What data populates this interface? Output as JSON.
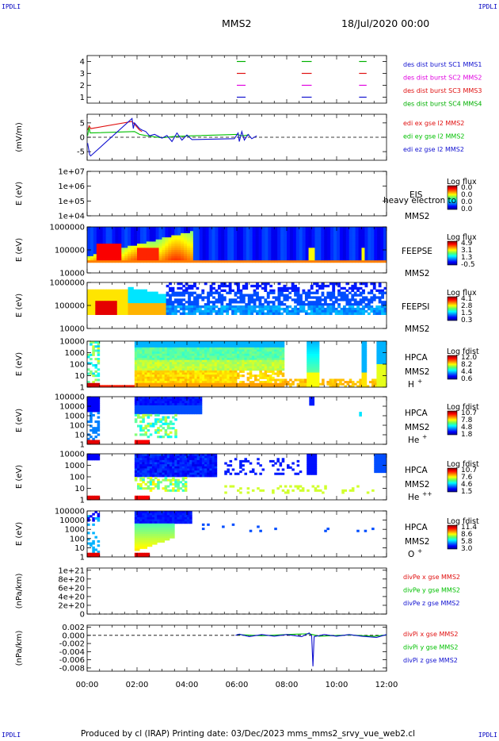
{
  "header": {
    "corner_tl": "IPDLI",
    "corner_tr": "IPDLI",
    "corner_bl": "IPDLI",
    "corner_br": "IPDLI",
    "title": "MMS2",
    "date": "18/Jul/2020 00:00"
  },
  "footer": {
    "text": "Produced by cl (IRAP)   Printing date: 03/Dec/2023   mms_mms2_srvy_vue_web2.cl"
  },
  "time_axis": {
    "range_hours": [
      0,
      12
    ],
    "ticks": [
      "00:00",
      "02:00",
      "04:00",
      "06:00",
      "08:00",
      "10:00",
      "12:00"
    ]
  },
  "colors": {
    "mms1": "#00b000",
    "mms2": "#e01010",
    "mms3": "#e000e0",
    "mms4": "#1010d0",
    "x_component": "#e01010",
    "y_component": "#00c000",
    "z_component": "#1010d0"
  },
  "chart_data": [
    {
      "type": "scatter",
      "panel": "burst-availability",
      "yticks": [
        "1",
        "2",
        "3",
        "4"
      ],
      "ylim": [
        0.5,
        4.5
      ],
      "legend": [
        {
          "text": "des dist burst SC1 MMS1",
          "color": "#1010d0"
        },
        {
          "text": "des dist burst SC2 MMS2",
          "color": "#e000e0"
        },
        {
          "text": "des dist burst SC3 MMS3",
          "color": "#e01010"
        },
        {
          "text": "des dist burst SC4 MMS4",
          "color": "#00b000"
        }
      ],
      "segments": [
        {
          "level": 4,
          "color": "#00b000",
          "start": 6.0,
          "end": 6.35
        },
        {
          "level": 4,
          "color": "#00b000",
          "start": 8.6,
          "end": 9.0
        },
        {
          "level": 4,
          "color": "#00b000",
          "start": 10.9,
          "end": 11.2
        },
        {
          "level": 3,
          "color": "#e01010",
          "start": 6.0,
          "end": 6.35
        },
        {
          "level": 3,
          "color": "#e01010",
          "start": 8.6,
          "end": 9.0
        },
        {
          "level": 3,
          "color": "#e01010",
          "start": 10.9,
          "end": 11.2
        },
        {
          "level": 2,
          "color": "#e000e0",
          "start": 6.0,
          "end": 6.35
        },
        {
          "level": 2,
          "color": "#e000e0",
          "start": 8.6,
          "end": 9.0
        },
        {
          "level": 2,
          "color": "#e000e0",
          "start": 10.9,
          "end": 11.2
        },
        {
          "level": 1,
          "color": "#1010d0",
          "start": 6.0,
          "end": 6.35
        },
        {
          "level": 1,
          "color": "#1010d0",
          "start": 8.6,
          "end": 9.0
        },
        {
          "level": 1,
          "color": "#1010d0",
          "start": 10.9,
          "end": 11.2
        }
      ]
    },
    {
      "type": "line",
      "panel": "edi-electric-field",
      "ylabel": "(mV/m)",
      "yticks": [
        "5",
        "0",
        "-5"
      ],
      "ylim": [
        -8,
        8
      ],
      "legend": [
        {
          "text": "edi ex gse l2 MMS2",
          "color": "#e01010"
        },
        {
          "text": "edi ey gse l2 MMS2",
          "color": "#00c000"
        },
        {
          "text": "edi ez gse l2 MMS2",
          "color": "#1010d0"
        }
      ],
      "series": [
        {
          "color": "#e01010",
          "points": [
            [
              0.02,
              2.5
            ],
            [
              0.08,
              4.0
            ],
            [
              0.15,
              3.0
            ],
            [
              1.8,
              5.5
            ],
            [
              1.9,
              4.5
            ],
            [
              2.0,
              3.5
            ],
            [
              2.1,
              2.5
            ],
            [
              2.2,
              2.0
            ]
          ]
        },
        {
          "color": "#00c000",
          "points": [
            [
              0.02,
              0.5
            ],
            [
              0.08,
              3.5
            ],
            [
              0.12,
              1.5
            ],
            [
              1.9,
              2.0
            ],
            [
              2.1,
              1.0
            ],
            [
              2.4,
              0.5
            ],
            [
              3.0,
              -0.2
            ],
            [
              3.5,
              0.3
            ],
            [
              6.0,
              1.0
            ],
            [
              6.2,
              0.5
            ],
            [
              6.5,
              0.8
            ]
          ]
        },
        {
          "color": "#1010d0",
          "points": [
            [
              0.02,
              -2.0
            ],
            [
              0.06,
              -4.0
            ],
            [
              0.1,
              -6.0
            ],
            [
              0.14,
              -6.5
            ],
            [
              1.8,
              6.5
            ],
            [
              1.85,
              3.0
            ],
            [
              1.9,
              5.0
            ],
            [
              2.0,
              4.0
            ],
            [
              2.1,
              3.0
            ],
            [
              2.2,
              2.5
            ],
            [
              2.35,
              2.0
            ],
            [
              2.5,
              0.5
            ],
            [
              2.7,
              1.0
            ],
            [
              3.0,
              -0.3
            ],
            [
              3.2,
              0.6
            ],
            [
              3.4,
              -1.5
            ],
            [
              3.6,
              1.5
            ],
            [
              3.8,
              -1.0
            ],
            [
              4.0,
              0.8
            ],
            [
              4.2,
              -0.8
            ],
            [
              5.9,
              -0.5
            ],
            [
              6.05,
              1.5
            ],
            [
              6.1,
              -1.5
            ],
            [
              6.2,
              2.0
            ],
            [
              6.3,
              -1.0
            ],
            [
              6.45,
              1.0
            ],
            [
              6.6,
              -0.5
            ],
            [
              6.8,
              0.5
            ]
          ]
        }
      ]
    },
    {
      "type": "heatmap",
      "panel": "eis",
      "ylabel": "E (eV)",
      "yticks": [
        "1e+07",
        "1e+06",
        "1e+05",
        "1e+04"
      ],
      "label": "EIS",
      "overlay_text": "heavy electron to",
      "spacecraft": "MMS2",
      "colorbar_title": "Log flux",
      "colorbar_ticks": [
        "0.0",
        "0.0",
        "0.0",
        "0.0"
      ],
      "values": []
    },
    {
      "type": "heatmap",
      "panel": "feeps-electrons",
      "ylabel": "E (eV)",
      "yticks": [
        "1000000",
        "100000",
        "10000"
      ],
      "label": "FEEPSE",
      "spacecraft": "MMS2",
      "colorbar_title": "Log flux",
      "colorbar_ticks": [
        "4.9",
        "3.1",
        "1.3",
        "-0.5"
      ]
    },
    {
      "type": "heatmap",
      "panel": "feeps-ions",
      "ylabel": "E (eV)",
      "yticks": [
        "1000000",
        "100000",
        "10000"
      ],
      "label": "FEEPSI",
      "spacecraft": "MMS2",
      "colorbar_title": "Log flux",
      "colorbar_ticks": [
        "4.1",
        "2.8",
        "1.5",
        "0.3"
      ]
    },
    {
      "type": "heatmap",
      "panel": "hpca-h",
      "ylabel": "E (eV)",
      "yticks": [
        "10000",
        "1000",
        "100",
        "10",
        "1"
      ],
      "label": "HPCA",
      "spacecraft": "MMS2",
      "species": "H",
      "species_charge": "+",
      "colorbar_title": "Log fdist",
      "colorbar_ticks": [
        "12.0",
        "8.2",
        "4.4",
        "0.6"
      ]
    },
    {
      "type": "heatmap",
      "panel": "hpca-he",
      "ylabel": "E (eV)",
      "yticks": [
        "100000",
        "10000",
        "1000",
        "100",
        "10",
        "1"
      ],
      "label": "HPCA",
      "spacecraft": "MMS2",
      "species": "He",
      "species_charge": "+",
      "colorbar_title": "Log fdist",
      "colorbar_ticks": [
        "10.7",
        "7.8",
        "4.8",
        "1.8"
      ]
    },
    {
      "type": "heatmap",
      "panel": "hpca-he2",
      "ylabel": "E (eV)",
      "yticks": [
        "10000",
        "1000",
        "100",
        "10",
        "1"
      ],
      "label": "HPCA",
      "spacecraft": "MMS2",
      "species": "He",
      "species_charge": "++",
      "colorbar_title": "Log fdist",
      "colorbar_ticks": [
        "10.7",
        "7.6",
        "4.6",
        "1.5"
      ]
    },
    {
      "type": "heatmap",
      "panel": "hpca-o",
      "ylabel": "E (eV)",
      "yticks": [
        "100000",
        "10000",
        "1000",
        "100",
        "10",
        "1"
      ],
      "label": "HPCA",
      "spacecraft": "MMS2",
      "species": "O",
      "species_charge": "+",
      "colorbar_title": "Log fdist",
      "colorbar_ticks": [
        "11.4",
        "8.6",
        "5.8",
        "3.0"
      ]
    },
    {
      "type": "line",
      "panel": "div-pe",
      "ylabel": "(nPa/km)",
      "yticks": [
        "1e+21",
        "8e+20",
        "6e+20",
        "4e+20",
        "2e+20",
        "0"
      ],
      "ylim": [
        0,
        1.05e+21
      ],
      "legend": [
        {
          "text": "divPe x gse MMS2",
          "color": "#e01010"
        },
        {
          "text": "divPe y gse MMS2",
          "color": "#00c000"
        },
        {
          "text": "divPe z gse MMS2",
          "color": "#1010d0"
        }
      ],
      "series": []
    },
    {
      "type": "line",
      "panel": "div-pi",
      "ylabel": "(nPa/km)",
      "yticks": [
        "0.002",
        "0.000",
        "-0.002",
        "-0.004",
        "-0.006",
        "-0.008"
      ],
      "ylim": [
        -0.0088,
        0.0025
      ],
      "legend": [
        {
          "text": "divPi x gse MMS2",
          "color": "#e01010"
        },
        {
          "text": "divPi y gse MMS2",
          "color": "#00c000"
        },
        {
          "text": "divPi z gse MMS2",
          "color": "#1010d0"
        }
      ],
      "series": [
        {
          "color": "#00c000",
          "points": [
            [
              6.0,
              0.0002
            ],
            [
              7.0,
              -0.0001
            ],
            [
              8.0,
              0.0002
            ],
            [
              8.9,
              0.0004
            ],
            [
              9.3,
              -0.0002
            ],
            [
              10.5,
              0.0001
            ],
            [
              11.5,
              -0.0002
            ],
            [
              12.0,
              0.0001
            ]
          ]
        },
        {
          "color": "#1010d0",
          "points": [
            [
              5.95,
              0.0
            ],
            [
              6.1,
              0.0003
            ],
            [
              6.5,
              -0.0003
            ],
            [
              7.0,
              0.0002
            ],
            [
              7.5,
              -0.0002
            ],
            [
              8.0,
              0.0002
            ],
            [
              8.6,
              -0.0003
            ],
            [
              8.9,
              0.0006
            ],
            [
              9.0,
              -0.0002
            ],
            [
              9.05,
              -0.0076
            ],
            [
              9.1,
              -0.0003
            ],
            [
              9.5,
              0.0002
            ],
            [
              10.0,
              -0.0002
            ],
            [
              10.5,
              0.0002
            ],
            [
              11.0,
              -0.0002
            ],
            [
              11.6,
              -0.0005
            ],
            [
              12.0,
              0.0002
            ]
          ]
        }
      ]
    }
  ]
}
